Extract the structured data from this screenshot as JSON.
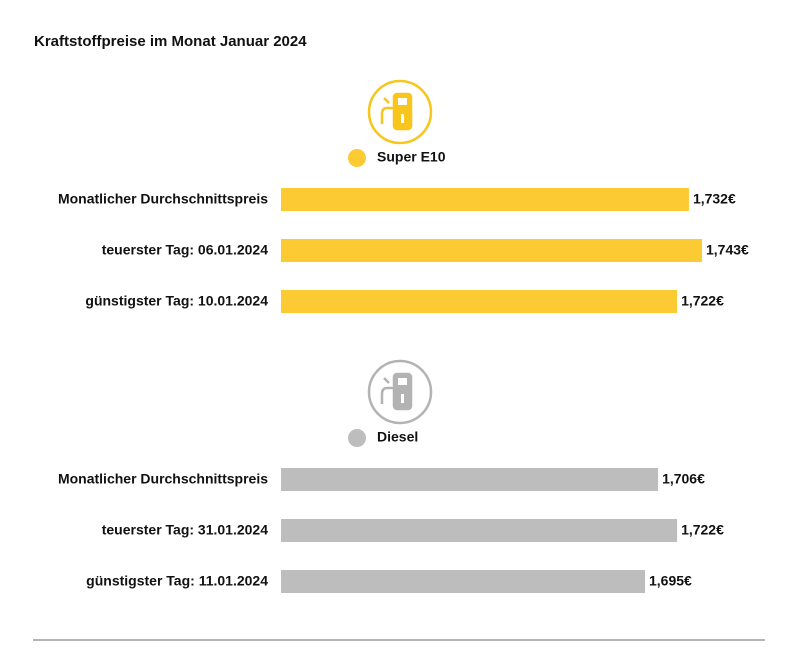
{
  "title": "Kraftstoffpreise im Monat Januar 2024",
  "chart_data": [
    {
      "type": "bar",
      "orientation": "horizontal",
      "categories": [
        "Monatlicher Durchschnittspreis",
        "teuerster Tag: 06.01.2024",
        "günstigster Tag: 10.01.2024"
      ],
      "series": [
        {
          "name": "Super E10",
          "color": "#fccb33",
          "icon_color": "#f7c51c",
          "values": [
            1.732,
            1.743,
            1.722
          ],
          "value_labels": [
            "1,732€",
            "1,743€",
            "1,722€"
          ]
        }
      ]
    },
    {
      "type": "bar",
      "orientation": "horizontal",
      "categories": [
        "Monatlicher Durchschnittspreis",
        "teuerster Tag: 31.01.2024",
        "günstigster Tag: 11.01.2024"
      ],
      "series": [
        {
          "name": "Diesel",
          "color": "#bebdbd",
          "icon_color": "#b3b3b3",
          "values": [
            1.706,
            1.722,
            1.695
          ],
          "value_labels": [
            "1,706€",
            "1,722€",
            "1,695€"
          ]
        }
      ]
    }
  ]
}
